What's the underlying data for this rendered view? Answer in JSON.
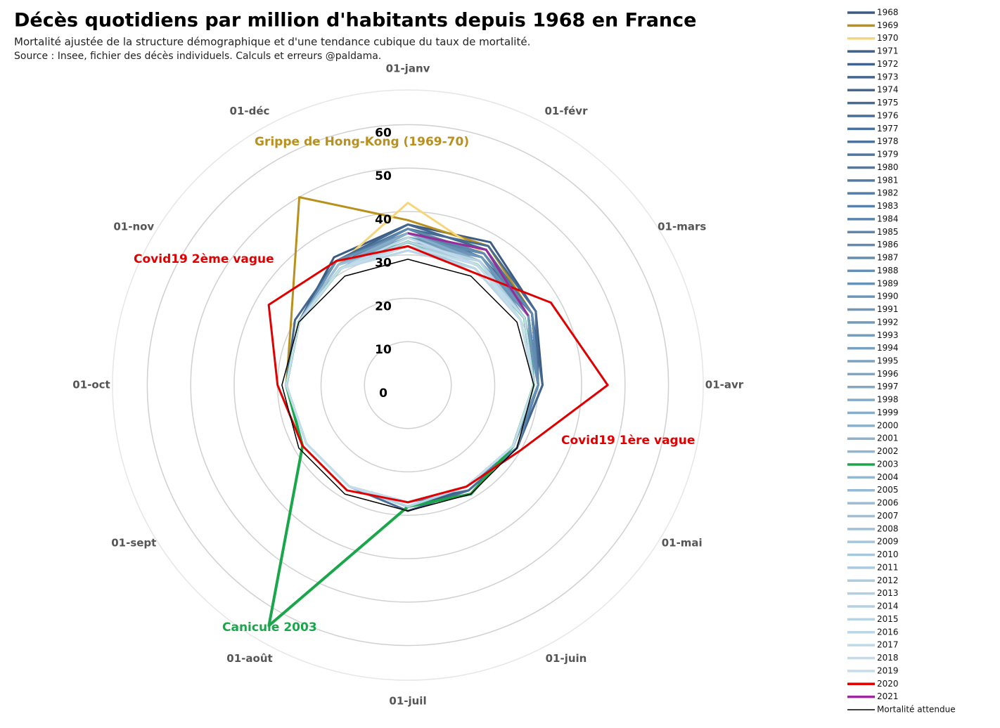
{
  "chart_data": {
    "type": "radar",
    "title": "Décès quotidiens par million d'habitants depuis 1968 en France",
    "subtitle": "Mortalité ajustée de la structure démographique et d'une tendance cubique du taux de mortalité.",
    "source": "Source : Insee, fichier des décès individuels. Calculs et erreurs @paldama.",
    "categories": [
      "01-janv",
      "01-févr",
      "01-mars",
      "01-avr",
      "01-mai",
      "01-juin",
      "01-juil",
      "01-août",
      "01-sept",
      "01-oct",
      "01-nov",
      "01-déc"
    ],
    "ylim": [
      0,
      68
    ],
    "yticks": [
      0,
      10,
      20,
      30,
      40,
      50,
      60
    ],
    "grid": true,
    "annotations": [
      {
        "text": "Grippe de Hong-Kong (1969-70)",
        "color": "#b8901c"
      },
      {
        "text": "Covid19 2ème vague",
        "color": "#e00000"
      },
      {
        "text": "Covid19 1ère vague",
        "color": "#e00000"
      },
      {
        "text": "Canicule 2003",
        "color": "#1aa64a"
      }
    ],
    "series": [
      {
        "name": "1968",
        "color": "#3b5b82",
        "values": [
          37,
          38,
          34,
          31,
          29,
          28,
          28,
          27,
          27,
          28,
          29,
          34
        ]
      },
      {
        "name": "1969",
        "color": "#b8901c",
        "values": [
          38,
          37,
          33,
          30,
          29,
          27,
          27,
          27,
          27,
          28,
          31,
          50
        ]
      },
      {
        "name": "1970",
        "color": "#f5d67a",
        "values": [
          42,
          35,
          32,
          30,
          28,
          27,
          27,
          27,
          27,
          28,
          29,
          32
        ]
      },
      {
        "name": "1971",
        "color": "#3f6189",
        "values": [
          35,
          36,
          33,
          30,
          29,
          27,
          27,
          27,
          27,
          28,
          29,
          33
        ]
      },
      {
        "name": "1972",
        "color": "#40638b",
        "values": [
          36,
          34,
          33,
          30,
          29,
          28,
          27,
          27,
          27,
          28,
          29,
          33
        ]
      },
      {
        "name": "1973",
        "color": "#42668e",
        "values": [
          37,
          36,
          33,
          31,
          29,
          27,
          27,
          27,
          27,
          28,
          30,
          33
        ]
      },
      {
        "name": "1974",
        "color": "#446891",
        "values": [
          35,
          34,
          32,
          30,
          29,
          27,
          27,
          27,
          27,
          28,
          29,
          33
        ]
      },
      {
        "name": "1975",
        "color": "#466b94",
        "values": [
          36,
          37,
          34,
          30,
          29,
          27,
          28,
          27,
          27,
          28,
          29,
          32
        ]
      },
      {
        "name": "1976",
        "color": "#486e97",
        "values": [
          35,
          35,
          33,
          30,
          29,
          28,
          29,
          27,
          27,
          28,
          29,
          33
        ]
      },
      {
        "name": "1977",
        "color": "#4a719a",
        "values": [
          34,
          34,
          32,
          30,
          29,
          27,
          27,
          27,
          27,
          28,
          29,
          32
        ]
      },
      {
        "name": "1978",
        "color": "#4c739c",
        "values": [
          35,
          36,
          33,
          30,
          29,
          27,
          27,
          27,
          27,
          28,
          29,
          32
        ]
      },
      {
        "name": "1979",
        "color": "#4e769f",
        "values": [
          36,
          35,
          33,
          30,
          29,
          27,
          27,
          27,
          27,
          28,
          29,
          33
        ]
      },
      {
        "name": "1980",
        "color": "#5079a2",
        "values": [
          35,
          34,
          32,
          30,
          29,
          27,
          27,
          27,
          27,
          28,
          29,
          32
        ]
      },
      {
        "name": "1981",
        "color": "#527ba4",
        "values": [
          34,
          35,
          33,
          30,
          29,
          27,
          27,
          27,
          27,
          28,
          29,
          32
        ]
      },
      {
        "name": "1982",
        "color": "#547ea7",
        "values": [
          34,
          34,
          32,
          30,
          28,
          27,
          27,
          27,
          27,
          28,
          29,
          32
        ]
      },
      {
        "name": "1983",
        "color": "#5781a9",
        "values": [
          35,
          35,
          33,
          30,
          29,
          27,
          28,
          27,
          27,
          28,
          29,
          32
        ]
      },
      {
        "name": "1984",
        "color": "#5a84ab",
        "values": [
          34,
          34,
          32,
          30,
          29,
          27,
          27,
          27,
          27,
          28,
          29,
          32
        ]
      },
      {
        "name": "1985",
        "color": "#5d87ad",
        "values": [
          36,
          35,
          32,
          30,
          28,
          27,
          27,
          27,
          27,
          28,
          29,
          32
        ]
      },
      {
        "name": "1986",
        "color": "#608aaf",
        "values": [
          34,
          35,
          33,
          30,
          28,
          27,
          27,
          27,
          27,
          28,
          29,
          32
        ]
      },
      {
        "name": "1987",
        "color": "#638db1",
        "values": [
          34,
          34,
          32,
          30,
          28,
          27,
          27,
          27,
          27,
          28,
          29,
          32
        ]
      },
      {
        "name": "1988",
        "color": "#6690b3",
        "values": [
          33,
          33,
          32,
          29,
          28,
          27,
          27,
          27,
          27,
          28,
          29,
          31
        ]
      },
      {
        "name": "1989",
        "color": "#6993b5",
        "values": [
          35,
          34,
          31,
          30,
          28,
          27,
          27,
          27,
          27,
          28,
          29,
          33
        ]
      },
      {
        "name": "1990",
        "color": "#6c96b7",
        "values": [
          35,
          33,
          31,
          29,
          28,
          27,
          27,
          27,
          27,
          28,
          29,
          32
        ]
      },
      {
        "name": "1991",
        "color": "#6f98b9",
        "values": [
          33,
          34,
          32,
          29,
          28,
          27,
          27,
          27,
          27,
          28,
          29,
          31
        ]
      },
      {
        "name": "1992",
        "color": "#729bbb",
        "values": [
          33,
          33,
          31,
          29,
          28,
          27,
          27,
          27,
          27,
          28,
          29,
          31
        ]
      },
      {
        "name": "1993",
        "color": "#759ebd",
        "values": [
          34,
          33,
          31,
          29,
          28,
          27,
          27,
          27,
          27,
          28,
          29,
          32
        ]
      },
      {
        "name": "1994",
        "color": "#78a1bf",
        "values": [
          33,
          33,
          31,
          29,
          28,
          27,
          27,
          27,
          27,
          28,
          29,
          31
        ]
      },
      {
        "name": "1995",
        "color": "#7ba3c1",
        "values": [
          34,
          33,
          31,
          29,
          28,
          27,
          27,
          27,
          27,
          28,
          29,
          31
        ]
      },
      {
        "name": "1996",
        "color": "#7ea6c3",
        "values": [
          33,
          33,
          31,
          29,
          28,
          27,
          27,
          27,
          27,
          28,
          29,
          32
        ]
      },
      {
        "name": "1997",
        "color": "#81a8c5",
        "values": [
          35,
          33,
          31,
          29,
          28,
          27,
          27,
          27,
          27,
          28,
          29,
          31
        ]
      },
      {
        "name": "1998",
        "color": "#84abc7",
        "values": [
          33,
          33,
          31,
          29,
          28,
          27,
          27,
          27,
          27,
          28,
          29,
          31
        ]
      },
      {
        "name": "1999",
        "color": "#87adc9",
        "values": [
          35,
          33,
          31,
          29,
          28,
          27,
          27,
          27,
          27,
          28,
          29,
          32
        ]
      },
      {
        "name": "2000",
        "color": "#8ab0cb",
        "values": [
          34,
          32,
          31,
          29,
          28,
          27,
          27,
          27,
          27,
          28,
          29,
          31
        ]
      },
      {
        "name": "2001",
        "color": "#8db2cd",
        "values": [
          32,
          32,
          31,
          29,
          28,
          27,
          27,
          27,
          27,
          28,
          29,
          31
        ]
      },
      {
        "name": "2002",
        "color": "#90b5cf",
        "values": [
          33,
          32,
          30,
          29,
          28,
          27,
          27,
          27,
          27,
          28,
          29,
          31
        ]
      },
      {
        "name": "2003",
        "color": "#1aa64a",
        "values": [
          33,
          32,
          31,
          29,
          28,
          29,
          28,
          64,
          28,
          28,
          29,
          31
        ]
      },
      {
        "name": "2004",
        "color": "#94b8d1",
        "values": [
          32,
          32,
          30,
          29,
          28,
          27,
          27,
          27,
          27,
          28,
          29,
          31
        ]
      },
      {
        "name": "2005",
        "color": "#97bad3",
        "values": [
          33,
          33,
          31,
          29,
          28,
          27,
          27,
          27,
          27,
          28,
          29,
          31
        ]
      },
      {
        "name": "2006",
        "color": "#9abdd5",
        "values": [
          33,
          32,
          30,
          29,
          28,
          27,
          28,
          27,
          27,
          28,
          29,
          31
        ]
      },
      {
        "name": "2007",
        "color": "#9dbfd7",
        "values": [
          32,
          31,
          30,
          29,
          28,
          27,
          27,
          27,
          27,
          28,
          29,
          31
        ]
      },
      {
        "name": "2008",
        "color": "#a0c2d9",
        "values": [
          32,
          32,
          30,
          29,
          28,
          27,
          27,
          27,
          27,
          28,
          29,
          32
        ]
      },
      {
        "name": "2009",
        "color": "#a4c5db",
        "values": [
          33,
          32,
          31,
          29,
          28,
          27,
          27,
          27,
          27,
          28,
          29,
          31
        ]
      },
      {
        "name": "2010",
        "color": "#a7c7dc",
        "values": [
          32,
          31,
          30,
          29,
          28,
          27,
          27,
          27,
          27,
          28,
          29,
          31
        ]
      },
      {
        "name": "2011",
        "color": "#aacade",
        "values": [
          32,
          32,
          30,
          29,
          28,
          27,
          27,
          27,
          27,
          28,
          29,
          31
        ]
      },
      {
        "name": "2012",
        "color": "#adcce0",
        "values": [
          32,
          33,
          31,
          29,
          28,
          27,
          27,
          27,
          27,
          28,
          29,
          31
        ]
      },
      {
        "name": "2013",
        "color": "#b1cfe2",
        "values": [
          32,
          32,
          31,
          29,
          28,
          27,
          27,
          27,
          27,
          28,
          29,
          31
        ]
      },
      {
        "name": "2014",
        "color": "#b4d1e3",
        "values": [
          31,
          31,
          30,
          29,
          28,
          27,
          27,
          27,
          27,
          28,
          29,
          31
        ]
      },
      {
        "name": "2015",
        "color": "#b7d4e5",
        "values": [
          33,
          33,
          30,
          29,
          28,
          27,
          28,
          27,
          27,
          28,
          29,
          31
        ]
      },
      {
        "name": "2016",
        "color": "#bad6e7",
        "values": [
          31,
          31,
          30,
          29,
          28,
          27,
          27,
          27,
          27,
          28,
          29,
          31
        ]
      },
      {
        "name": "2017",
        "color": "#bed9e8",
        "values": [
          34,
          32,
          30,
          29,
          28,
          27,
          27,
          27,
          27,
          28,
          29,
          31
        ]
      },
      {
        "name": "2018",
        "color": "#c1dbea",
        "values": [
          32,
          32,
          31,
          29,
          28,
          27,
          27,
          27,
          27,
          28,
          29,
          31
        ]
      },
      {
        "name": "2019",
        "color": "#c4ddeb",
        "values": [
          32,
          32,
          30,
          29,
          28,
          27,
          27,
          27,
          27,
          28,
          29,
          31
        ]
      },
      {
        "name": "2020",
        "color": "#e00000",
        "values": [
          32,
          30,
          38,
          46,
          30,
          27,
          27,
          28,
          28,
          30,
          37,
          33
        ]
      },
      {
        "name": "2021",
        "color": "#9b2a9b",
        "values": [
          35,
          36,
          32,
          null,
          null,
          null,
          null,
          null,
          null,
          null,
          null,
          null
        ]
      },
      {
        "name": "Mortalité attendue",
        "color": "#000000",
        "values": [
          29,
          29,
          29,
          29,
          29,
          29,
          29,
          29,
          29,
          29,
          29,
          29
        ]
      }
    ]
  }
}
